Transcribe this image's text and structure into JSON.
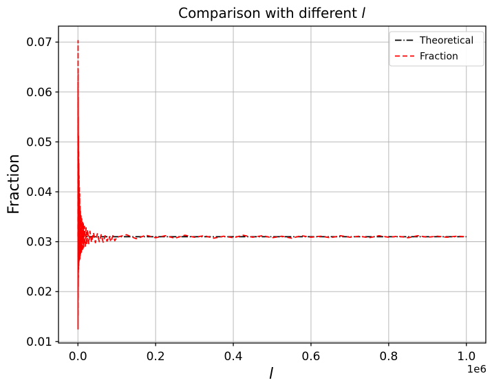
{
  "accent_colors": {
    "fraction_line": "#ff0000",
    "theoretical_line": "#000000",
    "grid": "#b0b0b0",
    "legend_border": "#cccccc",
    "background": "#ffffff"
  },
  "legend": {
    "position": "upper right",
    "entries": [
      {
        "label": "Theoretical",
        "color": "#000000",
        "linestyle": "dashdot"
      },
      {
        "label": "Fraction",
        "color": "#ff0000",
        "linestyle": "dashed"
      }
    ]
  },
  "chart_data": {
    "type": "line",
    "title": "Comparison with different l",
    "title_parts": {
      "prefix": "Comparison with different ",
      "var": "l"
    },
    "xlabel": "l",
    "ylabel": "Fraction",
    "x_scale_offset": "1e6",
    "grid": true,
    "legend_position": "upper right",
    "xlim": [
      -50000,
      1050000
    ],
    "ylim": [
      0.0097,
      0.0732
    ],
    "x_ticks": [
      {
        "v": 0,
        "label": "0.0"
      },
      {
        "v": 200000,
        "label": "0.2"
      },
      {
        "v": 400000,
        "label": "0.4"
      },
      {
        "v": 600000,
        "label": "0.6"
      },
      {
        "v": 800000,
        "label": "0.8"
      },
      {
        "v": 1000000,
        "label": "1.0"
      }
    ],
    "y_ticks": [
      {
        "v": 0.01,
        "label": "0.01"
      },
      {
        "v": 0.02,
        "label": "0.02"
      },
      {
        "v": 0.03,
        "label": "0.03"
      },
      {
        "v": 0.04,
        "label": "0.04"
      },
      {
        "v": 0.05,
        "label": "0.05"
      },
      {
        "v": 0.06,
        "label": "0.06"
      },
      {
        "v": 0.07,
        "label": "0.07"
      }
    ],
    "theoretical_value": 0.031,
    "series": [
      {
        "name": "Theoretical",
        "color": "#000000",
        "linestyle": "dashdot",
        "points": [
          [
            0,
            0.031
          ],
          [
            1000000,
            0.031
          ]
        ]
      },
      {
        "name": "Fraction",
        "color": "#ff0000",
        "linestyle": "dashed",
        "points": [
          [
            100,
            0.031
          ],
          [
            200,
            0.062
          ],
          [
            300,
            0.0125
          ],
          [
            400,
            0.0703
          ],
          [
            500,
            0.015
          ],
          [
            600,
            0.0645
          ],
          [
            700,
            0.0185
          ],
          [
            800,
            0.059
          ],
          [
            900,
            0.021
          ],
          [
            1000,
            0.055
          ],
          [
            1200,
            0.0228
          ],
          [
            1400,
            0.0512
          ],
          [
            1600,
            0.0242
          ],
          [
            1800,
            0.0483
          ],
          [
            2000,
            0.0252
          ],
          [
            2300,
            0.0457
          ],
          [
            2600,
            0.0256
          ],
          [
            3000,
            0.0432
          ],
          [
            3400,
            0.026
          ],
          [
            3800,
            0.0412
          ],
          [
            4200,
            0.0263
          ],
          [
            4600,
            0.0396
          ],
          [
            5000,
            0.0266
          ],
          [
            5500,
            0.0372
          ],
          [
            6000,
            0.0271
          ],
          [
            6500,
            0.0361
          ],
          [
            7000,
            0.0276
          ],
          [
            8000,
            0.0352
          ],
          [
            9000,
            0.0279
          ],
          [
            10000,
            0.0346
          ],
          [
            11000,
            0.0281
          ],
          [
            12000,
            0.034
          ],
          [
            13000,
            0.0286
          ],
          [
            14000,
            0.0336
          ],
          [
            15000,
            0.0289
          ],
          [
            17000,
            0.0331
          ],
          [
            19000,
            0.0291
          ],
          [
            21000,
            0.0328
          ],
          [
            23000,
            0.0294
          ],
          [
            25000,
            0.0324
          ],
          [
            28000,
            0.0296
          ],
          [
            31000,
            0.0321
          ],
          [
            35000,
            0.0299
          ],
          [
            40000,
            0.0318
          ],
          [
            45000,
            0.0298
          ],
          [
            50000,
            0.0316
          ],
          [
            55000,
            0.03
          ],
          [
            60000,
            0.0314
          ],
          [
            65000,
            0.0299
          ],
          [
            70000,
            0.0312
          ],
          [
            75000,
            0.0301
          ],
          [
            80000,
            0.0311
          ],
          [
            85000,
            0.03
          ],
          [
            90000,
            0.0312
          ],
          [
            95000,
            0.0302
          ],
          [
            100000,
            0.0309
          ],
          [
            125000,
            0.0314
          ],
          [
            150000,
            0.0306
          ],
          [
            175000,
            0.0313
          ],
          [
            200000,
            0.0308
          ],
          [
            225000,
            0.0312
          ],
          [
            250000,
            0.0307
          ],
          [
            275000,
            0.0313
          ],
          [
            300000,
            0.0309
          ],
          [
            325000,
            0.0312
          ],
          [
            350000,
            0.0307
          ],
          [
            375000,
            0.0311
          ],
          [
            400000,
            0.0308
          ],
          [
            425000,
            0.0313
          ],
          [
            450000,
            0.0309
          ],
          [
            475000,
            0.0312
          ],
          [
            500000,
            0.0308
          ],
          [
            525000,
            0.0311
          ],
          [
            550000,
            0.0307
          ],
          [
            575000,
            0.0312
          ],
          [
            600000,
            0.0309
          ],
          [
            625000,
            0.0311
          ],
          [
            650000,
            0.0308
          ],
          [
            675000,
            0.0312
          ],
          [
            700000,
            0.0309
          ],
          [
            725000,
            0.0311
          ],
          [
            750000,
            0.0308
          ],
          [
            775000,
            0.0312
          ],
          [
            800000,
            0.0309
          ],
          [
            825000,
            0.0311
          ],
          [
            850000,
            0.0308
          ],
          [
            875000,
            0.0312
          ],
          [
            900000,
            0.0309
          ],
          [
            925000,
            0.0311
          ],
          [
            950000,
            0.0309
          ],
          [
            975000,
            0.0311
          ],
          [
            1000000,
            0.031
          ]
        ]
      }
    ]
  }
}
